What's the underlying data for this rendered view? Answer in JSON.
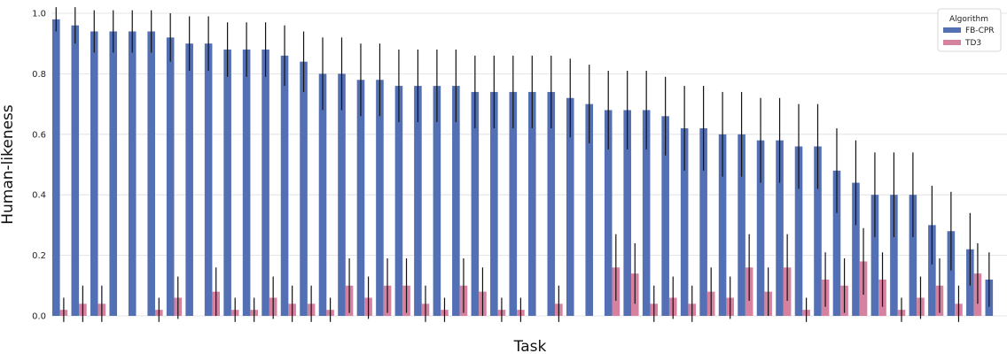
{
  "chart_data": {
    "type": "bar",
    "xlabel": "Task",
    "ylabel": "Human-likeness",
    "ylim": [
      0,
      1.0
    ],
    "yticks": [
      "0.0",
      "0.2",
      "0.4",
      "0.6",
      "0.8",
      "1.0"
    ],
    "grid": true,
    "legend": {
      "title": "Algorithm",
      "position": "top-right"
    },
    "series": [
      {
        "name": "FB-CPR",
        "color": "#5470b4",
        "values": [
          0.98,
          0.96,
          0.94,
          0.94,
          0.94,
          0.94,
          0.92,
          0.9,
          0.9,
          0.88,
          0.88,
          0.88,
          0.86,
          0.84,
          0.8,
          0.8,
          0.78,
          0.78,
          0.76,
          0.76,
          0.76,
          0.76,
          0.74,
          0.74,
          0.74,
          0.74,
          0.74,
          0.72,
          0.7,
          0.68,
          0.68,
          0.68,
          0.66,
          0.62,
          0.62,
          0.6,
          0.6,
          0.58,
          0.58,
          0.56,
          0.56,
          0.48,
          0.44,
          0.4,
          0.4,
          0.4,
          0.3,
          0.28,
          0.22,
          0.12
        ],
        "errors": [
          0.04,
          0.06,
          0.07,
          0.07,
          0.07,
          0.07,
          0.08,
          0.09,
          0.09,
          0.09,
          0.09,
          0.09,
          0.1,
          0.1,
          0.12,
          0.12,
          0.12,
          0.12,
          0.12,
          0.12,
          0.12,
          0.12,
          0.12,
          0.12,
          0.12,
          0.12,
          0.12,
          0.13,
          0.13,
          0.13,
          0.13,
          0.13,
          0.13,
          0.14,
          0.14,
          0.14,
          0.14,
          0.14,
          0.14,
          0.14,
          0.14,
          0.14,
          0.14,
          0.14,
          0.14,
          0.14,
          0.13,
          0.13,
          0.12,
          0.09
        ]
      },
      {
        "name": "TD3",
        "color": "#d5819f",
        "values": [
          0.02,
          0.04,
          0.04,
          0.0,
          0.0,
          0.02,
          0.06,
          0.0,
          0.08,
          0.02,
          0.02,
          0.06,
          0.04,
          0.04,
          0.02,
          0.1,
          0.06,
          0.1,
          0.1,
          0.04,
          0.02,
          0.1,
          0.08,
          0.02,
          0.02,
          0.0,
          0.04,
          0.0,
          0.0,
          0.16,
          0.14,
          0.04,
          0.06,
          0.04,
          0.08,
          0.06,
          0.16,
          0.08,
          0.16,
          0.02,
          0.12,
          0.1,
          0.18,
          0.12,
          0.02,
          0.06,
          0.1,
          0.04,
          0.14,
          0.0
        ],
        "errors": [
          0.04,
          0.06,
          0.06,
          0.0,
          0.0,
          0.04,
          0.07,
          0.0,
          0.08,
          0.04,
          0.04,
          0.07,
          0.06,
          0.06,
          0.04,
          0.09,
          0.07,
          0.09,
          0.09,
          0.06,
          0.04,
          0.09,
          0.08,
          0.04,
          0.04,
          0.0,
          0.06,
          0.0,
          0.0,
          0.11,
          0.1,
          0.06,
          0.07,
          0.06,
          0.08,
          0.07,
          0.11,
          0.08,
          0.11,
          0.04,
          0.09,
          0.09,
          0.11,
          0.09,
          0.04,
          0.07,
          0.09,
          0.06,
          0.1,
          0.0
        ]
      }
    ]
  }
}
